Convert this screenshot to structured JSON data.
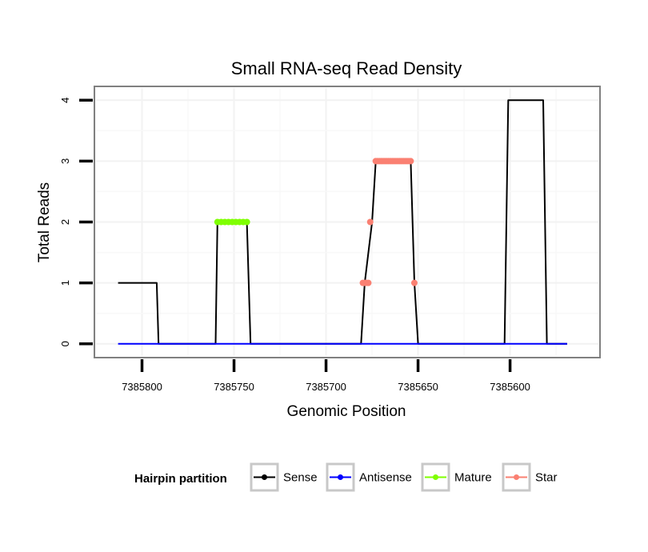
{
  "chart_data": {
    "type": "line",
    "title": "Small RNA-seq Read Density",
    "xlabel": "Genomic Position",
    "ylabel": "Total Reads",
    "x_reversed": true,
    "xlim": [
      7385825,
      7385552
    ],
    "ylim": [
      -0.2,
      4.2
    ],
    "xticks": [
      7385800,
      7385750,
      7385700,
      7385650,
      7385600
    ],
    "xtick_labels": [
      "7385800",
      "7385750",
      "7385700",
      "7385650",
      "7385600"
    ],
    "yticks": [
      0,
      1,
      2,
      3,
      4
    ],
    "ytick_labels": [
      "0",
      "1",
      "2",
      "3",
      "4"
    ],
    "grid": true,
    "legend": {
      "title": "Hairpin partition",
      "position": "bottom",
      "entries": [
        {
          "name": "Sense",
          "color": "#000000"
        },
        {
          "name": "Antisense",
          "color": "#0000ff"
        },
        {
          "name": "Mature",
          "color": "#7fff00"
        },
        {
          "name": "Star",
          "color": "#fa8072"
        }
      ]
    },
    "series": [
      {
        "name": "Sense",
        "color": "#000000",
        "x": [
          7385813,
          7385792,
          7385791,
          7385760,
          7385759,
          7385743,
          7385741,
          7385681,
          7385679,
          7385675,
          7385673,
          7385654,
          7385652,
          7385650,
          7385603,
          7385601,
          7385582,
          7385580,
          7385569
        ],
        "values": [
          1,
          1,
          0,
          0,
          2,
          2,
          0,
          0,
          1,
          2,
          3,
          3,
          1,
          0,
          0,
          4,
          4,
          0,
          0
        ]
      },
      {
        "name": "Antisense",
        "color": "#0000ff",
        "x": [
          7385813,
          7385569
        ],
        "values": [
          0,
          0
        ]
      },
      {
        "name": "Mature",
        "color": "#7fff00",
        "x": [
          7385759,
          7385757,
          7385755,
          7385753,
          7385751,
          7385749,
          7385747,
          7385745,
          7385743
        ],
        "values": [
          2,
          2,
          2,
          2,
          2,
          2,
          2,
          2,
          2
        ]
      },
      {
        "name": "Star",
        "color": "#fa8072",
        "x": [
          7385680,
          7385679,
          7385678,
          7385677,
          7385676,
          7385673,
          7385672,
          7385671,
          7385670,
          7385669,
          7385668,
          7385667,
          7385666,
          7385665,
          7385664,
          7385663,
          7385662,
          7385661,
          7385660,
          7385659,
          7385658,
          7385657,
          7385656,
          7385655,
          7385654,
          7385652
        ],
        "values": [
          1,
          1,
          1,
          1,
          2,
          3,
          3,
          3,
          3,
          3,
          3,
          3,
          3,
          3,
          3,
          3,
          3,
          3,
          3,
          3,
          3,
          3,
          3,
          3,
          3,
          1
        ]
      }
    ]
  }
}
